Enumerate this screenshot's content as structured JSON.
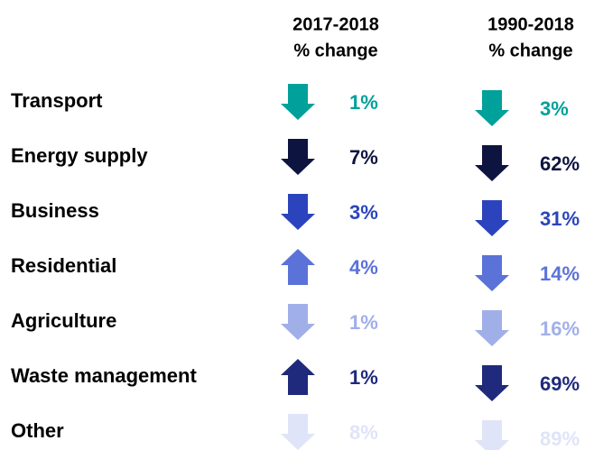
{
  "columns": [
    {
      "period": "2017-2018",
      "measure": "% change"
    },
    {
      "period": "1990-2018",
      "measure": "% change"
    }
  ],
  "rows": [
    {
      "label": "Transport",
      "color": "#00a19a",
      "changes": [
        {
          "direction": "down",
          "text": "1%"
        },
        {
          "direction": "down",
          "text": "3%"
        }
      ]
    },
    {
      "label": "Energy supply",
      "color": "#0e1440",
      "changes": [
        {
          "direction": "down",
          "text": "7%"
        },
        {
          "direction": "down",
          "text": "62%"
        }
      ]
    },
    {
      "label": "Business",
      "color": "#2b44bd",
      "changes": [
        {
          "direction": "down",
          "text": "3%"
        },
        {
          "direction": "down",
          "text": "31%"
        }
      ]
    },
    {
      "label": "Residential",
      "color": "#5b72d9",
      "changes": [
        {
          "direction": "up",
          "text": "4%"
        },
        {
          "direction": "down",
          "text": "14%"
        }
      ]
    },
    {
      "label": "Agriculture",
      "color": "#a1afe9",
      "changes": [
        {
          "direction": "down",
          "text": "1%"
        },
        {
          "direction": "down",
          "text": "16%"
        }
      ]
    },
    {
      "label": "Waste management",
      "color": "#1f2a7c",
      "changes": [
        {
          "direction": "up",
          "text": "1%"
        },
        {
          "direction": "down",
          "text": "69%"
        }
      ]
    },
    {
      "label": "Other",
      "color": "#dfe4f8",
      "changes": [
        {
          "direction": "down",
          "text": "8%"
        },
        {
          "direction": "down",
          "text": "89%"
        }
      ]
    }
  ]
}
